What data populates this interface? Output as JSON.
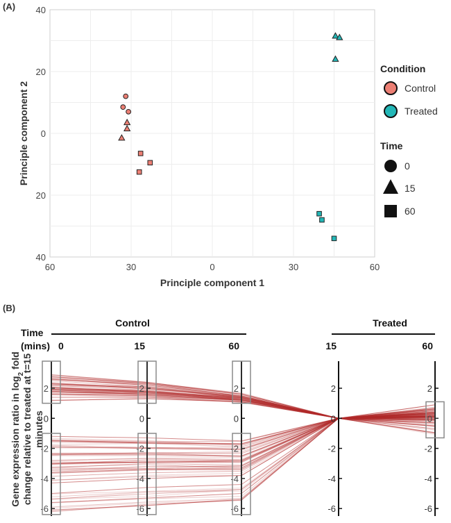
{
  "chart_data": [
    {
      "panel": "(A)",
      "type": "scatter",
      "xlabel": "Principle component 1",
      "ylabel": "Principle component 2",
      "xlim": [
        -60,
        60
      ],
      "ylim": [
        -40,
        40
      ],
      "xticks": [
        -60,
        -30,
        0,
        30,
        60
      ],
      "xtick_labels": [
        "60",
        "30",
        "0",
        "30",
        "60"
      ],
      "yticks": [
        40,
        20,
        0,
        -20,
        -40
      ],
      "ytick_labels": [
        "40",
        "20",
        "0",
        "20",
        "40"
      ],
      "colors": {
        "Control": "#ec7f74",
        "Treated": "#23b7b7"
      },
      "points": [
        {
          "x": -32,
          "y": 12,
          "condition": "Control",
          "time": 0
        },
        {
          "x": -33,
          "y": 8.5,
          "condition": "Control",
          "time": 0
        },
        {
          "x": -31,
          "y": 7,
          "condition": "Control",
          "time": 0
        },
        {
          "x": -31.5,
          "y": 3.5,
          "condition": "Control",
          "time": 15
        },
        {
          "x": -31.5,
          "y": 1.5,
          "condition": "Control",
          "time": 15
        },
        {
          "x": -33.5,
          "y": -1.5,
          "condition": "Control",
          "time": 15
        },
        {
          "x": -26.5,
          "y": -6.5,
          "condition": "Control",
          "time": 60
        },
        {
          "x": -23,
          "y": -9.5,
          "condition": "Control",
          "time": 60
        },
        {
          "x": -27,
          "y": -12.5,
          "condition": "Control",
          "time": 60
        },
        {
          "x": 45.5,
          "y": 31.5,
          "condition": "Treated",
          "time": 15
        },
        {
          "x": 47,
          "y": 31,
          "condition": "Treated",
          "time": 15
        },
        {
          "x": 45.5,
          "y": 24,
          "condition": "Treated",
          "time": 15
        },
        {
          "x": 39.5,
          "y": -26,
          "condition": "Treated",
          "time": 60
        },
        {
          "x": 40.5,
          "y": -28,
          "condition": "Treated",
          "time": 60
        },
        {
          "x": 45,
          "y": -34,
          "condition": "Treated",
          "time": 60
        }
      ],
      "legend": {
        "condition_title": "Condition",
        "conditions": [
          "Control",
          "Treated"
        ],
        "time_title": "Time",
        "times": [
          "0",
          "15",
          "60"
        ]
      }
    },
    {
      "panel": "(B)",
      "type": "line",
      "subtype": "parallel-coordinates",
      "time_label": "Time",
      "units_label": "(mins)",
      "group_labels": [
        "Control",
        "Treated"
      ],
      "axis_labels": [
        "0",
        "15",
        "60",
        "15",
        "60"
      ],
      "axis_groups": [
        "Control",
        "Control",
        "Control",
        "Treated",
        "Treated"
      ],
      "ylabel_line1": "Gene expression ratio in log",
      "ylabel_sub": "2",
      "ylabel_line1_end": " fold",
      "ylabel_line2": "change relative to treated at t=15",
      "ylabel_line3": "minutes",
      "ylim": [
        -6.5,
        3.8
      ],
      "yticks": [
        2,
        0,
        -2,
        -4,
        -6
      ],
      "ytick_labels": [
        "2",
        "0",
        "-2",
        "-4",
        "-6"
      ],
      "line_color": "#b02a2a",
      "upregulated_example_values": [
        [
          2.9,
          2.4,
          1.6,
          0,
          0.5
        ],
        [
          2.6,
          2.2,
          1.5,
          0,
          0.4
        ],
        [
          2.3,
          2.0,
          1.4,
          0,
          0.3
        ],
        [
          2.0,
          1.8,
          1.3,
          0,
          0.2
        ],
        [
          1.8,
          1.6,
          1.2,
          0,
          0.1
        ],
        [
          1.6,
          1.5,
          1.2,
          0,
          0.0
        ],
        [
          1.4,
          1.4,
          1.1,
          0,
          -0.1
        ],
        [
          1.2,
          1.3,
          1.1,
          0,
          -0.3
        ]
      ],
      "downregulated_example_values": [
        [
          -1.2,
          -1.3,
          -1.5,
          0,
          0.9
        ],
        [
          -1.5,
          -1.6,
          -1.7,
          0,
          0.7
        ],
        [
          -1.9,
          -2.0,
          -2.1,
          0,
          0.5
        ],
        [
          -2.4,
          -2.4,
          -2.5,
          0,
          0.3
        ],
        [
          -3.0,
          -2.9,
          -2.9,
          0,
          0.1
        ],
        [
          -3.6,
          -3.4,
          -3.3,
          0,
          -0.1
        ],
        [
          -4.3,
          -4.0,
          -3.8,
          0,
          -0.3
        ],
        [
          -5.0,
          -4.6,
          -4.4,
          0,
          -0.5
        ],
        [
          -5.6,
          -5.3,
          -5.0,
          0,
          -0.7
        ],
        [
          -6.1,
          -5.8,
          -5.4,
          0,
          -1.0
        ]
      ],
      "box_ranges": [
        {
          "axis": 0,
          "from": 1.0,
          "to": 3.8
        },
        {
          "axis": 0,
          "from": -6.4,
          "to": -1.0
        },
        {
          "axis": 1,
          "from": 1.0,
          "to": 3.8
        },
        {
          "axis": 1,
          "from": -6.4,
          "to": -1.0
        },
        {
          "axis": 2,
          "from": 1.0,
          "to": 3.8
        },
        {
          "axis": 2,
          "from": -6.4,
          "to": -1.0
        },
        {
          "axis": 4,
          "from": -1.3,
          "to": 1.1
        }
      ]
    }
  ]
}
